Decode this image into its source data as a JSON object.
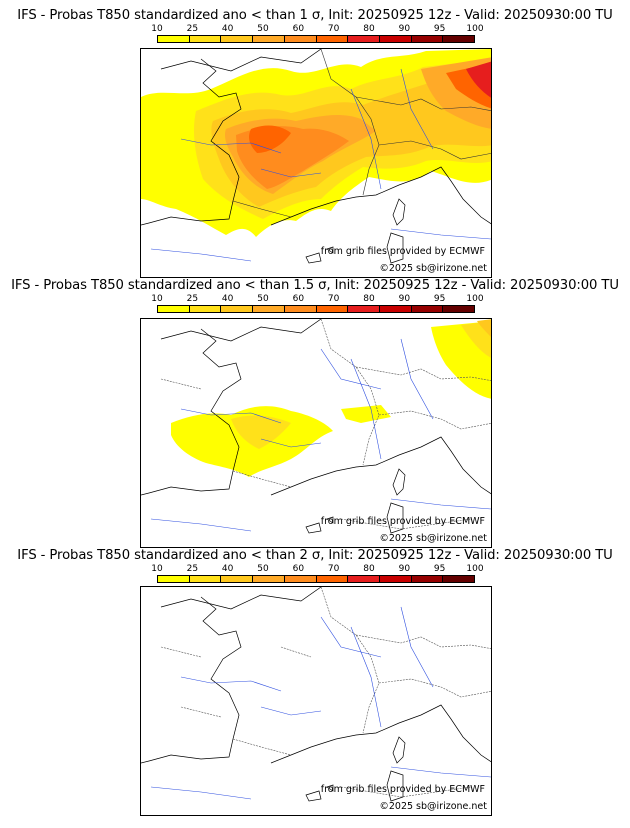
{
  "legend": {
    "labels": [
      "10",
      "25",
      "40",
      "50",
      "60",
      "70",
      "80",
      "90",
      "95",
      "100"
    ],
    "colors": [
      "#ffff00",
      "#ffe11a",
      "#ffc81e",
      "#ffaa28",
      "#ff8c1e",
      "#ff6400",
      "#e61e1e",
      "#c80000",
      "#960000",
      "#640000"
    ]
  },
  "panels": [
    {
      "title": "IFS - Probas T850  standardized ano < than 1 σ, Init: 20250925 12z - Valid: 20250930:00 TU",
      "threshold_sigma": 1,
      "source_credit": "from grib files provided by ECMWF",
      "copyright": "©2025 sb@irizone.net"
    },
    {
      "title": "IFS - Probas T850  standardized ano < than 1.5 σ, Init: 20250925 12z - Valid: 20250930:00 TU",
      "threshold_sigma": 1.5,
      "source_credit": "from grib files provided by ECMWF",
      "copyright": "©2025 sb@irizone.net"
    },
    {
      "title": "IFS - Probas T850  standardized ano < than 2 σ, Init: 20250925 12z - Valid: 20250930:00 TU",
      "threshold_sigma": 2,
      "source_credit": "from grib files provided by ECMWF",
      "copyright": "©2025 sb@irizone.net"
    }
  ]
}
